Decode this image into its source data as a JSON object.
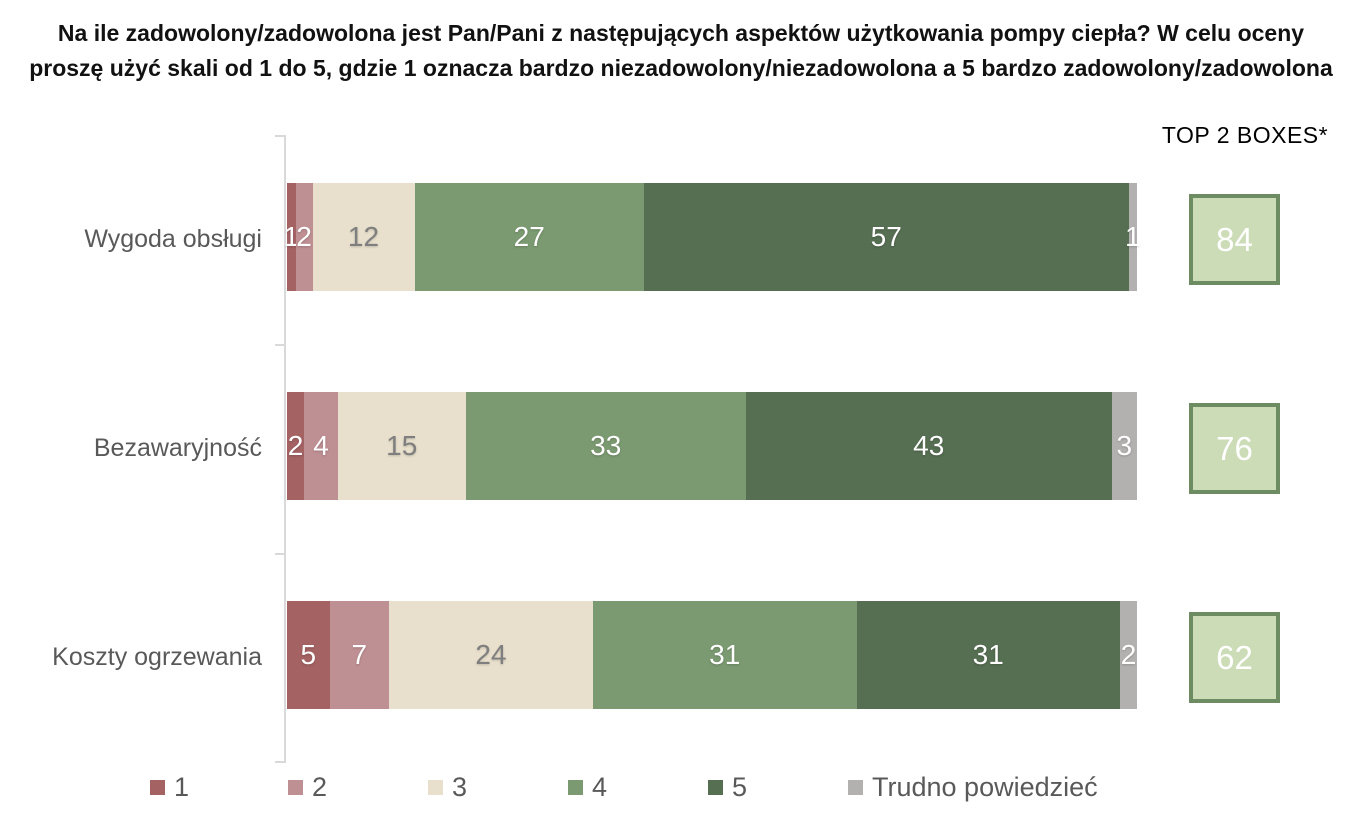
{
  "colors": {
    "axis": "#d9d9d9",
    "text_muted": "#595959",
    "title_text": "#111111",
    "top2_box_fill": "#cbdcb7",
    "top2_box_border": "#6e8c61",
    "top2_value_text": "#ffffff"
  },
  "chart_data": {
    "type": "bar",
    "orientation": "horizontal",
    "stacked": true,
    "grid": false,
    "xlim": [
      0,
      100
    ],
    "legend_position": "bottom",
    "title": "Na ile zadowolony/zadowolona jest Pan/Pani z następujących aspektów użytkowania pompy ciepła? W celu oceny proszę użyć skali od 1 do 5, gdzie 1 oznacza bardzo niezadowolony/niezadowolona a 5 bardzo zadowolony/zadowolona",
    "title_lines": [
      "Na ile zadowolony/zadowolona jest Pan/Pani z następujących aspektów użytkowania pompy ciepła? W celu oceny",
      "proszę użyć skali od 1 do 5, gdzie 1 oznacza bardzo niezadowolony/niezadowolona a 5 bardzo zadowolony/zadowolona"
    ],
    "categories": [
      "Wygoda obsługi",
      "Bezawaryjność",
      "Koszty ogrzewania"
    ],
    "series": [
      {
        "name": "1",
        "color": "#a46263",
        "label_color": "#ffffff",
        "values": [
          1,
          2,
          5
        ]
      },
      {
        "name": "2",
        "color": "#be8f93",
        "label_color": "#ffffff",
        "values": [
          2,
          4,
          7
        ]
      },
      {
        "name": "3",
        "color": "#e8e0cc",
        "label_color": "#7f7f7f",
        "values": [
          12,
          15,
          24
        ]
      },
      {
        "name": "4",
        "color": "#7b9a71",
        "label_color": "#ffffff",
        "values": [
          27,
          33,
          31
        ]
      },
      {
        "name": "5",
        "color": "#566e52",
        "label_color": "#ffffff",
        "values": [
          57,
          43,
          31
        ]
      },
      {
        "name": "Trudno powiedzieć",
        "color": "#b3b0b0",
        "label_color": "#ffffff",
        "values": [
          1,
          3,
          2
        ]
      }
    ],
    "top2_boxes": {
      "label": "TOP 2 BOXES*",
      "values": [
        84,
        76,
        62
      ]
    }
  }
}
